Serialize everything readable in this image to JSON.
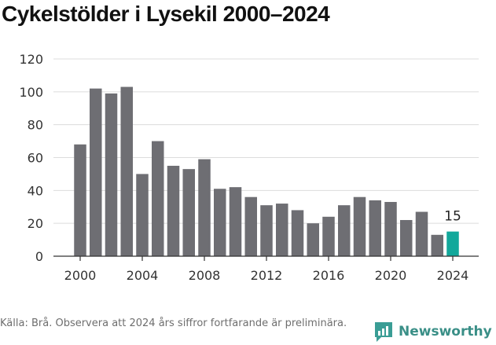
{
  "title": "Cykelstölder i Lysekil 2000–2024",
  "source": "Källa: Brå. Observera att 2024 års siffror fortfarande är preliminära.",
  "brand": {
    "name": "Newsworthy",
    "icon": "newsworthy-logo-icon",
    "color": "#3a9d95"
  },
  "colors": {
    "bar": "#6e6e73",
    "highlight": "#12a89b",
    "grid": "#dcdcdc"
  },
  "chart_data": {
    "type": "bar",
    "title": "Cykelstölder i Lysekil 2000–2024",
    "xlabel": "",
    "ylabel": "",
    "ylim": [
      0,
      120
    ],
    "yticks": [
      0,
      20,
      40,
      60,
      80,
      100,
      120
    ],
    "xticks": [
      2000,
      2004,
      2008,
      2012,
      2016,
      2020,
      2024
    ],
    "categories": [
      2000,
      2001,
      2002,
      2003,
      2004,
      2005,
      2006,
      2007,
      2008,
      2009,
      2010,
      2011,
      2012,
      2013,
      2014,
      2015,
      2016,
      2017,
      2018,
      2019,
      2020,
      2021,
      2022,
      2023,
      2024
    ],
    "values": [
      68,
      102,
      99,
      103,
      50,
      70,
      55,
      53,
      59,
      41,
      42,
      36,
      31,
      32,
      28,
      20,
      24,
      31,
      36,
      34,
      33,
      22,
      27,
      13,
      15
    ],
    "highlight_category": 2024,
    "highlight_label": "15",
    "grid": true
  }
}
